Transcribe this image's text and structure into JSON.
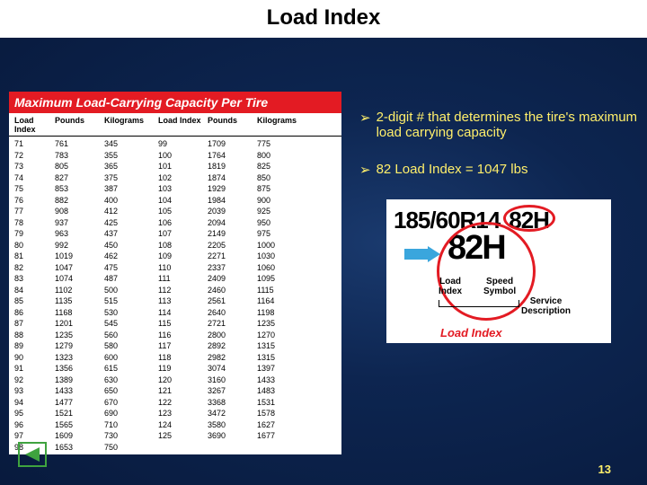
{
  "title": "Load Index",
  "table": {
    "header": "Maximum Load-Carrying Capacity Per Tire",
    "columns": [
      "Load Index",
      "Pounds",
      "Kilograms",
      "Load Index",
      "Pounds",
      "Kilograms"
    ],
    "rows": [
      [
        "71",
        "761",
        "345",
        "99",
        "1709",
        "775"
      ],
      [
        "72",
        "783",
        "355",
        "100",
        "1764",
        "800"
      ],
      [
        "73",
        "805",
        "365",
        "101",
        "1819",
        "825"
      ],
      [
        "74",
        "827",
        "375",
        "102",
        "1874",
        "850"
      ],
      [
        "75",
        "853",
        "387",
        "103",
        "1929",
        "875"
      ],
      [
        "76",
        "882",
        "400",
        "104",
        "1984",
        "900"
      ],
      [
        "77",
        "908",
        "412",
        "105",
        "2039",
        "925"
      ],
      [
        "78",
        "937",
        "425",
        "106",
        "2094",
        "950"
      ],
      [
        "79",
        "963",
        "437",
        "107",
        "2149",
        "975"
      ],
      [
        "80",
        "992",
        "450",
        "108",
        "2205",
        "1000"
      ],
      [
        "81",
        "1019",
        "462",
        "109",
        "2271",
        "1030"
      ],
      [
        "82",
        "1047",
        "475",
        "110",
        "2337",
        "1060"
      ],
      [
        "83",
        "1074",
        "487",
        "111",
        "2409",
        "1095"
      ],
      [
        "84",
        "1102",
        "500",
        "112",
        "2460",
        "1115"
      ],
      [
        "85",
        "1135",
        "515",
        "113",
        "2561",
        "1164"
      ],
      [
        "86",
        "1168",
        "530",
        "114",
        "2640",
        "1198"
      ],
      [
        "87",
        "1201",
        "545",
        "115",
        "2721",
        "1235"
      ],
      [
        "88",
        "1235",
        "560",
        "116",
        "2800",
        "1270"
      ],
      [
        "89",
        "1279",
        "580",
        "117",
        "2892",
        "1315"
      ],
      [
        "90",
        "1323",
        "600",
        "118",
        "2982",
        "1315"
      ],
      [
        "91",
        "1356",
        "615",
        "119",
        "3074",
        "1397"
      ],
      [
        "92",
        "1389",
        "630",
        "120",
        "3160",
        "1433"
      ],
      [
        "93",
        "1433",
        "650",
        "121",
        "3267",
        "1483"
      ],
      [
        "94",
        "1477",
        "670",
        "122",
        "3368",
        "1531"
      ],
      [
        "95",
        "1521",
        "690",
        "123",
        "3472",
        "1578"
      ],
      [
        "96",
        "1565",
        "710",
        "124",
        "3580",
        "1627"
      ],
      [
        "97",
        "1609",
        "730",
        "125",
        "3690",
        "1677"
      ],
      [
        "98",
        "1653",
        "750",
        "—",
        "—",
        "—"
      ]
    ]
  },
  "bullets": [
    "2-digit # that determines the tire's maximum load carrying capacity",
    "82 Load Index = 1047 lbs"
  ],
  "tire": {
    "line1": "185/60R14",
    "badge": "82H",
    "big": "82H",
    "labels": {
      "load": "Load\nIndex",
      "speed": "Speed\nSymbol",
      "service": "Service\nDescription"
    },
    "caption": "Load Index"
  },
  "page_number": "13",
  "colors": {
    "red": "#e31b23",
    "yellow": "#ffef6b",
    "blue_arrow": "#3aa6dd",
    "green": "#3fa33f"
  }
}
